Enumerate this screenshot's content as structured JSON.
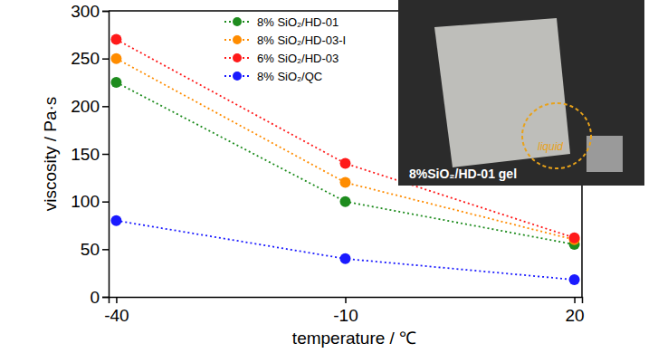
{
  "chart_data": {
    "type": "line",
    "x_label": "temperature / ℃",
    "y_label": "viscosity / Pa·s",
    "x": [
      -40,
      -10,
      20
    ],
    "xlim": [
      -41,
      21
    ],
    "xticks": [
      -40,
      -10,
      20
    ],
    "ylim": [
      0,
      300
    ],
    "yticks": [
      0,
      50,
      100,
      150,
      200,
      250,
      300
    ],
    "legend": "upper left",
    "grid": false,
    "series": [
      {
        "name": "8% SiO₂/HD-01",
        "color": "#1e8c1e",
        "marker": "circle",
        "line_style": "dotted",
        "values": [
          225,
          100,
          55
        ]
      },
      {
        "name": "8% SiO₂/HD-03-I",
        "color": "#ff8c00",
        "marker": "circle",
        "line_style": "dotted",
        "values": [
          250,
          120,
          60
        ]
      },
      {
        "name": "6% SiO₂/HD-03",
        "color": "#ff1a1a",
        "marker": "circle",
        "line_style": "dotted",
        "values": [
          270,
          140,
          62
        ]
      },
      {
        "name": "8% SiO₂/QC",
        "color": "#1a1aff",
        "marker": "circle",
        "line_style": "dotted",
        "values": [
          80,
          40,
          18
        ]
      }
    ],
    "annotations": [
      "liquid",
      "8%SiO₂/HD-01 gel"
    ]
  }
}
